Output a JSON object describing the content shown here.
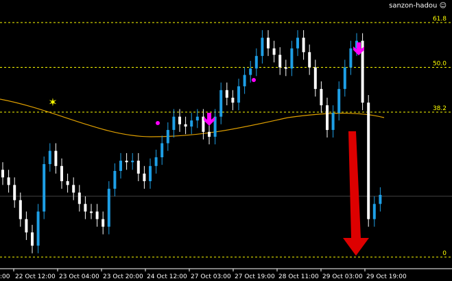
{
  "brand": {
    "label": "sanzon-hadou",
    "icon": "smiley-icon"
  },
  "colors": {
    "background": "#000000",
    "bull": "#1e9fe6",
    "bear": "#ffffff",
    "fib": "#ffff00",
    "ma": "#e0a000",
    "signal": "#ff00ff",
    "big_arrow": "#dd0000"
  },
  "chart_data": {
    "type": "candlestick",
    "fib_levels": [
      {
        "value": 61.8,
        "label": "61.8"
      },
      {
        "value": 50.0,
        "label": "50.0"
      },
      {
        "value": 38.2,
        "label": "38.2"
      },
      {
        "value": 0,
        "label": "0"
      }
    ],
    "x_ticks": [
      ":00",
      "22 Oct 12:00",
      "23 Oct 04:00",
      "23 Oct 20:00",
      "24 Oct 12:00",
      "27 Oct 03:00",
      "27 Oct 19:00",
      "28 Oct 11:00",
      "29 Oct 03:00",
      "29 Oct 19:00"
    ],
    "closes_fib_pct": [
      21,
      19,
      15,
      10,
      6.5,
      3,
      12,
      24.5,
      28,
      24,
      20,
      19,
      17,
      14,
      12,
      12,
      10,
      8,
      18,
      22.7,
      25.4,
      25,
      25.4,
      22,
      20,
      24,
      26.3,
      30,
      33.5,
      37,
      35,
      34.4,
      36,
      37,
      33,
      31.7,
      37,
      44,
      42,
      40.7,
      45,
      48,
      49.7,
      53,
      57.8,
      55,
      53.3,
      50,
      49.7,
      55,
      57.8,
      54,
      50,
      44.3,
      40,
      33.5,
      38,
      44.3,
      50,
      55,
      57,
      40.7,
      10,
      14,
      16.4
    ],
    "grid": false
  }
}
